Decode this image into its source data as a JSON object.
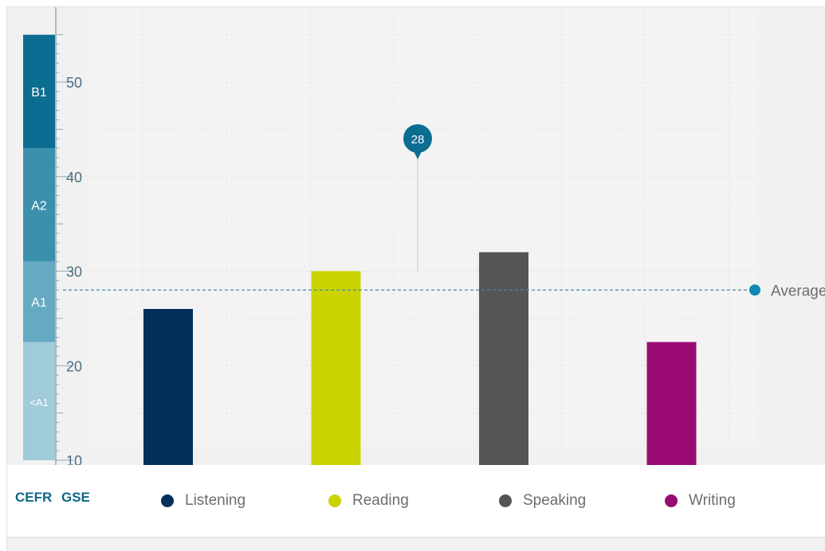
{
  "chart_data": {
    "type": "bar",
    "categories": [
      "Listening",
      "Reading",
      "Speaking",
      "Writing"
    ],
    "values": [
      26,
      30,
      32,
      22.5
    ],
    "colors": [
      "#02305a",
      "#cbd300",
      "#555555",
      "#990a73"
    ],
    "ylim": [
      10,
      55
    ],
    "yticks": [
      "10",
      "20",
      "30",
      "40",
      "50"
    ],
    "average": 28,
    "average_label": "Average",
    "callout_value": "28",
    "cefr_bands": [
      {
        "label": "B1",
        "from": 43,
        "to": 55,
        "color": "#0b6d91"
      },
      {
        "label": "A2",
        "from": 31,
        "to": 43,
        "color": "#3b91ad"
      },
      {
        "label": "A1",
        "from": 22.5,
        "to": 31,
        "color": "#66a9c2"
      },
      {
        "label": "<A1",
        "from": 10,
        "to": 22.5,
        "color": "#a0cbd9"
      }
    ],
    "grid": true,
    "legend_position": "bottom"
  },
  "footer": {
    "cefr_label": "CEFR",
    "gse_label": "GSE"
  }
}
